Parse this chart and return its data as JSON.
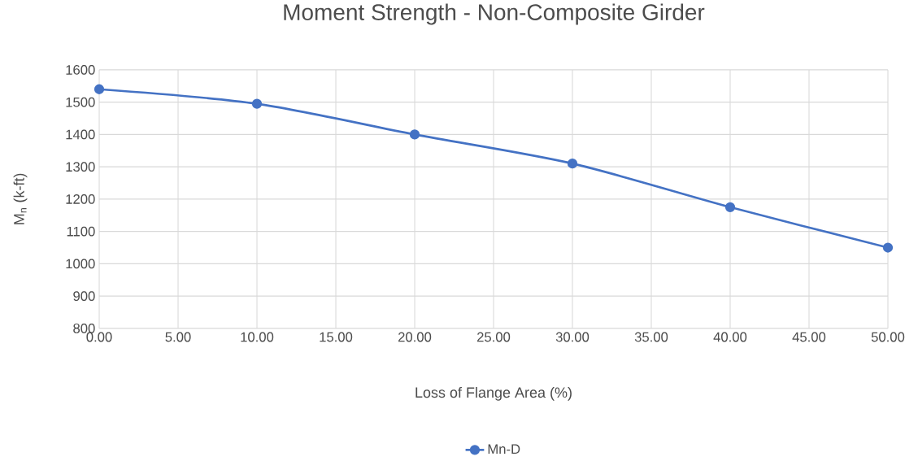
{
  "chart_data": {
    "type": "line",
    "title": "Moment Strength - Non-Composite Girder",
    "xlabel": "Loss of Flange Area (%)",
    "ylabel": "M$_{n}$ (k-ft)",
    "x": [
      0,
      10,
      20,
      30,
      40,
      50
    ],
    "series": [
      {
        "name": "Mn-D",
        "color": "#4472c4",
        "values": [
          1540,
          1495,
          1400,
          1310,
          1175,
          1050
        ]
      }
    ],
    "xlim": [
      0,
      50
    ],
    "ylim": [
      800,
      1600
    ],
    "xticks": [
      {
        "value": 0,
        "label": "0.00"
      },
      {
        "value": 5,
        "label": "5.00"
      },
      {
        "value": 10,
        "label": "10.00"
      },
      {
        "value": 15,
        "label": "15.00"
      },
      {
        "value": 20,
        "label": "20.00"
      },
      {
        "value": 25,
        "label": "25.00"
      },
      {
        "value": 30,
        "label": "30.00"
      },
      {
        "value": 35,
        "label": "35.00"
      },
      {
        "value": 40,
        "label": "40.00"
      },
      {
        "value": 45,
        "label": "45.00"
      },
      {
        "value": 50,
        "label": "50.00"
      }
    ],
    "yticks": [
      800,
      900,
      1000,
      1100,
      1200,
      1300,
      1400,
      1500,
      1600
    ],
    "grid": true,
    "legend": "bottom",
    "marker": "circle"
  }
}
